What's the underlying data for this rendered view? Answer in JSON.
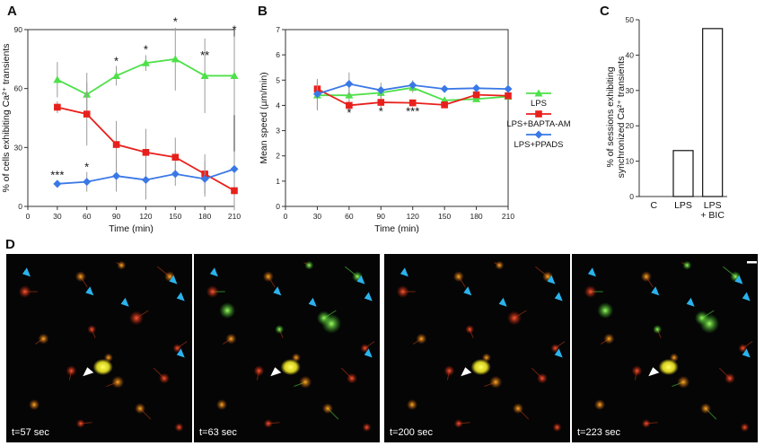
{
  "panels": {
    "a": "A",
    "b": "B",
    "c": "C",
    "d": "D"
  },
  "colors": {
    "lps": "#4ee04a",
    "bapta": "#e8201c",
    "ppads": "#3a78e6",
    "arrow_blue": "#2ab3ec",
    "arrow_white": "#ffffff"
  },
  "chart_data": [
    {
      "type": "line",
      "panel": "A",
      "xlabel": "Time (min)",
      "ylabel": "% of cells exhibiting Ca²⁺ transients",
      "xlim": [
        0,
        210
      ],
      "ylim": [
        0,
        90
      ],
      "x_ticks": [
        "0",
        "30",
        "60",
        "90",
        "120",
        "150",
        "180",
        "210"
      ],
      "y_ticks": [
        "0",
        "30",
        "60",
        "90"
      ],
      "x": [
        30,
        60,
        90,
        120,
        150,
        180,
        210
      ],
      "series": [
        {
          "name": "LPS",
          "color": "#4ee04a",
          "marker": "triangle",
          "values": [
            64.5,
            57,
            66.5,
            73,
            75,
            66.5,
            66.5
          ],
          "err": [
            9,
            11,
            5,
            4,
            16,
            19,
            20
          ]
        },
        {
          "name": "LPS+BAPTA-AM",
          "color": "#e8201c",
          "marker": "square",
          "values": [
            50.5,
            47,
            31.5,
            27.5,
            25,
            16.5,
            8
          ],
          "err": [
            3,
            16,
            12,
            12,
            10,
            10,
            10
          ]
        },
        {
          "name": "LPS+PPADS",
          "color": "#3a78e6",
          "marker": "diamond",
          "values": [
            11.5,
            12.5,
            15.5,
            13.5,
            16.5,
            14,
            19
          ],
          "err": [
            2,
            5,
            8,
            10,
            6,
            9,
            9
          ]
        }
      ],
      "annotations": [
        {
          "x": 30,
          "y": 14,
          "text": "***"
        },
        {
          "x": 60,
          "y": 18,
          "text": "*"
        },
        {
          "x": 90,
          "y": 72,
          "text": "*"
        },
        {
          "x": 120,
          "y": 78,
          "text": "*"
        },
        {
          "x": 150,
          "y": 92,
          "text": "*"
        },
        {
          "x": 180,
          "y": 75,
          "text": "**"
        },
        {
          "x": 210,
          "y": 88,
          "text": "*"
        }
      ]
    },
    {
      "type": "line",
      "panel": "B",
      "xlabel": "Time (min)",
      "ylabel": "Mean speed (µm/min)",
      "xlim": [
        0,
        210
      ],
      "ylim": [
        0,
        7
      ],
      "x_ticks": [
        "0",
        "30",
        "60",
        "90",
        "120",
        "150",
        "180",
        "210"
      ],
      "y_ticks": [
        "0",
        "1",
        "2",
        "3",
        "4",
        "5",
        "6",
        "7"
      ],
      "x": [
        30,
        60,
        90,
        120,
        150,
        180,
        210
      ],
      "series": [
        {
          "name": "LPS",
          "color": "#4ee04a",
          "marker": "triangle",
          "values": [
            4.4,
            4.4,
            4.5,
            4.7,
            4.2,
            4.25,
            4.35
          ],
          "err": [
            0.6,
            0.4,
            0.2,
            0.2,
            0.1,
            0.1,
            0.1
          ]
        },
        {
          "name": "LPS+BAPTA-AM",
          "color": "#e8201c",
          "marker": "square",
          "values": [
            4.65,
            4.0,
            4.12,
            4.1,
            4.02,
            4.42,
            4.38
          ],
          "err": [
            0.3,
            0.2,
            0.2,
            0.1,
            0.1,
            0.1,
            0.1
          ]
        },
        {
          "name": "LPS+PPADS",
          "color": "#3a78e6",
          "marker": "diamond",
          "values": [
            4.45,
            4.85,
            4.6,
            4.8,
            4.65,
            4.68,
            4.65
          ],
          "err": [
            0.6,
            0.45,
            0.3,
            0.2,
            0.1,
            0.1,
            0.1
          ]
        }
      ],
      "annotations": [
        {
          "x": 60,
          "y": 3.55,
          "text": "*"
        },
        {
          "x": 90,
          "y": 3.6,
          "text": "*"
        },
        {
          "x": 120,
          "y": 3.6,
          "text": "***"
        }
      ],
      "legend": {
        "placement": "right",
        "entries": [
          "LPS",
          "LPS+BAPTA-AM",
          "LPS+PPADS"
        ]
      }
    },
    {
      "type": "bar",
      "panel": "C",
      "ylabel": "% of sessions exhibiting synchronized Ca²⁺ transients",
      "ylabel_lines": [
        "% of sessions exhibiting",
        "synchronized Ca²⁺ transients"
      ],
      "ylim": [
        0,
        50
      ],
      "y_ticks": [
        "0",
        "10",
        "20",
        "30",
        "40",
        "50"
      ],
      "categories": [
        "C",
        "LPS",
        "LPS + BIC"
      ],
      "category_lines": [
        [
          "C"
        ],
        [
          "LPS"
        ],
        [
          "LPS",
          "+ BIC"
        ]
      ],
      "values": [
        0,
        13,
        47.5
      ]
    }
  ],
  "micrographs": {
    "frames": [
      {
        "label": "t=57 sec",
        "highlight": "red"
      },
      {
        "label": "t=63 sec",
        "highlight": "green"
      },
      {
        "label": "t=200 sec",
        "highlight": "red"
      },
      {
        "label": "t=223 sec",
        "highlight": "green"
      }
    ]
  }
}
